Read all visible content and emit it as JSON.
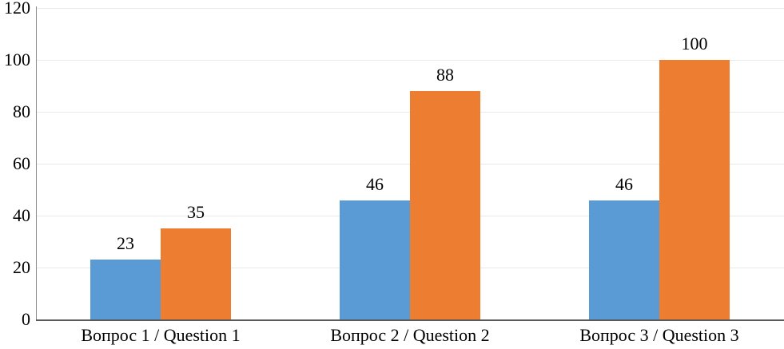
{
  "chart_data": {
    "type": "bar",
    "title": "",
    "xlabel": "",
    "ylabel": "",
    "categories": [
      "Вопрос 1 / Question 1",
      "Вопрос 2 / Question 2",
      "Вопрос 3 / Question 3"
    ],
    "series": [
      {
        "name": "",
        "color": "#5B9BD5",
        "values": [
          23,
          46,
          46
        ]
      },
      {
        "name": "",
        "color": "#ED7D31",
        "values": [
          35,
          88,
          100
        ]
      }
    ],
    "data_labels": [
      [
        "23",
        "46",
        "46"
      ],
      [
        "35",
        "88",
        "100"
      ]
    ],
    "yticks": [
      "0",
      "20",
      "40",
      "60",
      "80",
      "100",
      "120"
    ],
    "ylim": [
      0,
      120
    ],
    "ytick_interval": 20,
    "grid": true,
    "legend_position": "none"
  },
  "colors": {
    "series_blue": "#5B9BD5",
    "series_orange": "#ED7D31",
    "gridline": "#E9E9E9",
    "y_axis_line": "#8C8C8C",
    "baseline": "#595959",
    "label_text": "#000000",
    "background": "#FFFFFF"
  }
}
